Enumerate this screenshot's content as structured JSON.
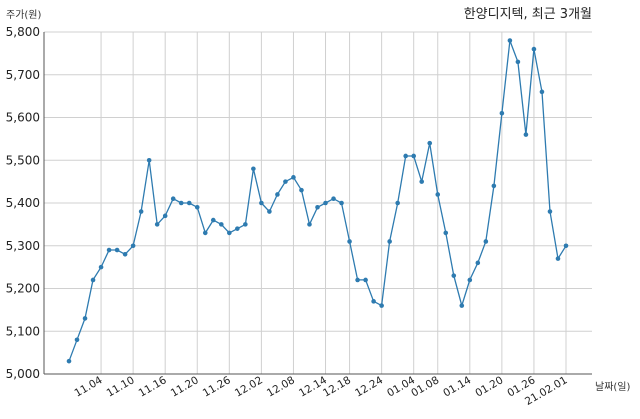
{
  "chart_data": {
    "type": "line",
    "title": "한양디지텍, 최근 3개월",
    "xlabel": "날짜(일)",
    "ylabel": "주가(원)",
    "ylim": [
      5000,
      5800
    ],
    "yticks": [
      "5,000",
      "5,100",
      "5,200",
      "5,300",
      "5,400",
      "5,500",
      "5,600",
      "5,700",
      "5,800"
    ],
    "xtick_labels": [
      "11.04",
      "11.10",
      "11.16",
      "11.20",
      "11.26",
      "12.02",
      "12.08",
      "12.14",
      "12.18",
      "12.24",
      "01.04",
      "01.08",
      "01.14",
      "01.20",
      "01.26",
      "21.02.01"
    ],
    "grid": true,
    "line_color": "#2e7bb0",
    "series": [
      {
        "values": [
          5030,
          5080,
          5130,
          5220,
          5250,
          5290,
          5290,
          5280,
          5300,
          5380,
          5500,
          5350,
          5370,
          5410,
          5400,
          5400,
          5390,
          5330,
          5360,
          5350,
          5330,
          5340,
          5350,
          5480,
          5400,
          5380,
          5420,
          5450,
          5460,
          5430,
          5350,
          5390,
          5400,
          5410,
          5400,
          5310,
          5220,
          5220,
          5170,
          5160,
          5310,
          5400,
          5510,
          5510,
          5450,
          5540,
          5420,
          5330,
          5230,
          5160,
          5220,
          5260,
          5310,
          5440,
          5610,
          5780,
          5730,
          5560,
          5760,
          5660,
          5380,
          5270,
          5300
        ]
      }
    ]
  }
}
